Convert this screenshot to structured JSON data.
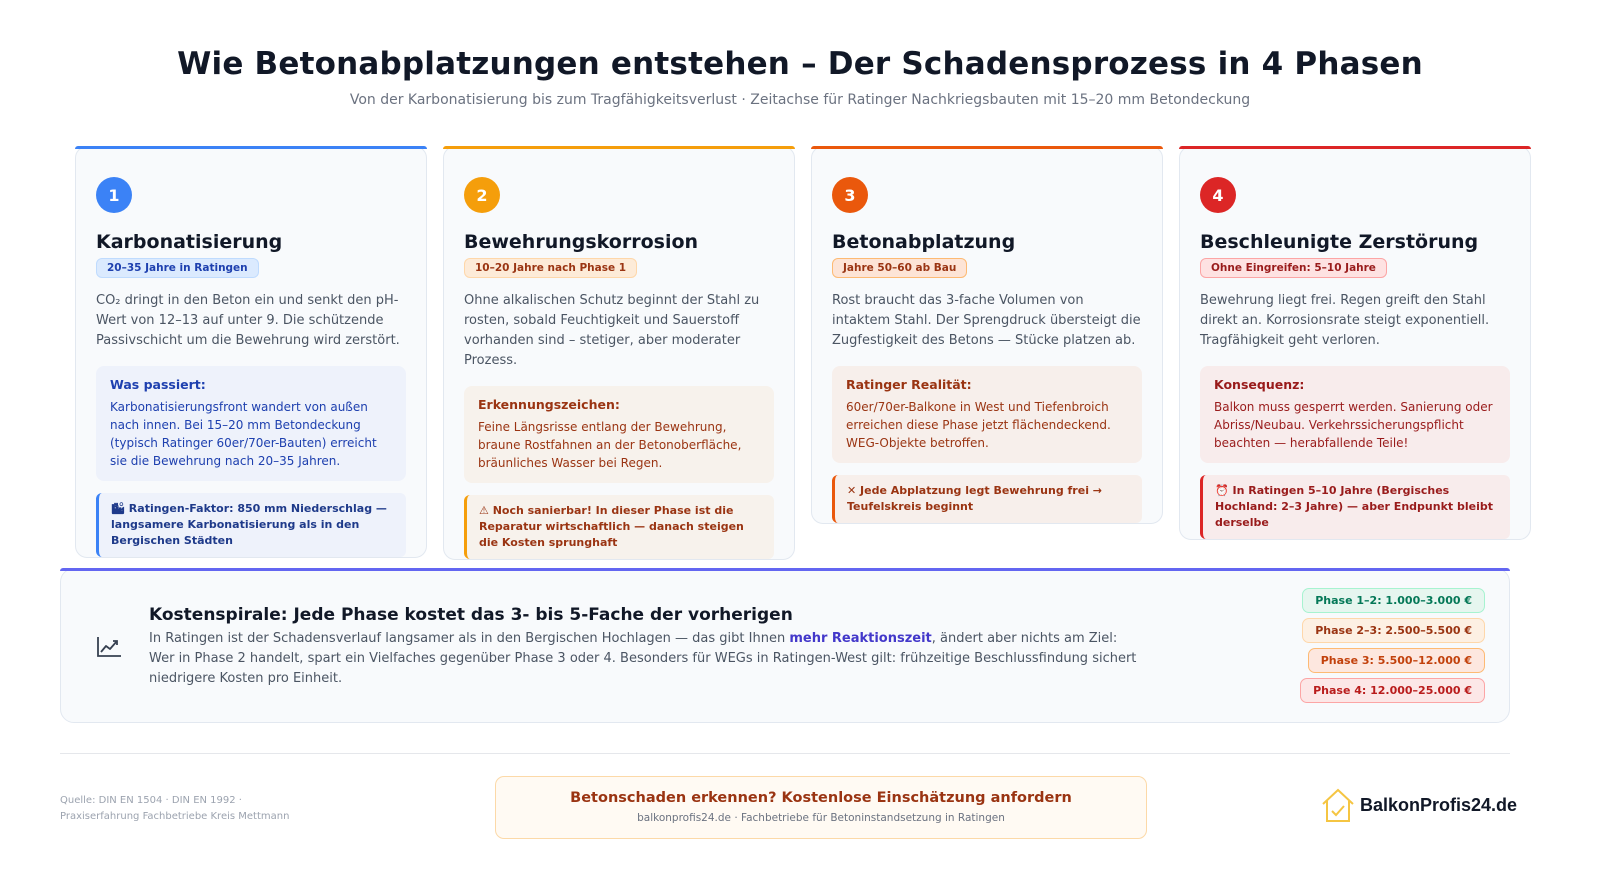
{
  "header": {
    "title": "Wie Betonabplatzungen entstehen – Der Schadensprozess in 4 Phasen",
    "subtitle": "Von der Karbonatisierung bis zum Tragfähigkeitsverlust · Zeitachse für Ratinger Nachkriegsbauten mit 15–20 mm Betondeckung"
  },
  "phases": [
    {
      "number": "1",
      "title": "Karbonatisierung",
      "badge": "20–35 Jahre in Ratingen",
      "description": "CO₂ dringt in den Beton ein und senkt den pH-Wert von 12–13 auf unter 9. Die schützende Passivschicht um die Bewehrung wird zerstört.",
      "box_title": "Was passiert:",
      "box_text": "Karbonatisierungsfront wandert von außen nach innen. Bei 15–20 mm Betondeckung (typisch Ratinger 60er/70er-Bauten) erreicht sie die Bewehrung nach 20–35 Jahren.",
      "note": "🏙 Ratingen-Faktor: 850 mm Niederschlag — langsamere Karbonatisierung als in den Bergischen Städten",
      "accent": "#3b82f6"
    },
    {
      "number": "2",
      "title": "Bewehrungskorrosion",
      "badge": "10–20 Jahre nach Phase 1",
      "description": "Ohne alkalischen Schutz beginnt der Stahl zu rosten, sobald Feuchtigkeit und Sauerstoff vorhanden sind – stetiger, aber moderater Prozess.",
      "box_title": "Erkennungszeichen:",
      "box_text": "Feine Längsrisse entlang der Bewehrung, braune Rostfahnen an der Betonoberfläche, bräunliches Wasser bei Regen.",
      "note": "⚠ Noch sanierbar! In dieser Phase ist die Reparatur wirtschaftlich — danach steigen die Kosten sprunghaft",
      "accent": "#f59e0b"
    },
    {
      "number": "3",
      "title": "Betonabplatzung",
      "badge": "Jahre 50–60 ab Bau",
      "description": "Rost braucht das 3-fache Volumen von intaktem Stahl. Der Sprengdruck übersteigt die Zugfestigkeit des Betons — Stücke platzen ab.",
      "box_title": "Ratinger Realität:",
      "box_text": "60er/70er-Balkone in West und Tiefenbroich erreichen diese Phase jetzt flächendeckend. WEG-Objekte betroffen.",
      "note": "✕ Jede Abplatzung legt Bewehrung frei → Teufelskreis beginnt",
      "accent": "#ea580c"
    },
    {
      "number": "4",
      "title": "Beschleunigte Zerstörung",
      "badge": "Ohne Eingreifen: 5–10 Jahre",
      "description": "Bewehrung liegt frei. Regen greift den Stahl direkt an. Korrosionsrate steigt exponentiell. Tragfähigkeit geht verloren.",
      "box_title": "Konsequenz:",
      "box_text": "Balkon muss gesperrt werden. Sanierung oder Abriss/Neubau. Verkehrssicherungspflicht beachten — herabfallende Teile!",
      "note": "⏰ In Ratingen 5–10 Jahre (Bergisches Hochland: 2–3 Jahre) — aber Endpunkt bleibt derselbe",
      "accent": "#dc2626"
    }
  ],
  "cost": {
    "icon": "chart-icon",
    "title": "Kostenspirale: Jede Phase kostet das 3- bis 5-Fache der vorherigen",
    "text_before": "In Ratingen ist der Schadensverlauf langsamer als in den Bergischen Hochlagen — das gibt Ihnen ",
    "text_highlight": "mehr Reaktionszeit",
    "text_after": ", ändert aber nichts am Ziel: Wer in Phase 2 handelt, spart ein Vielfaches gegenüber Phase 3 oder 4. Besonders für WEGs in Ratingen-West gilt: frühzeitige Beschlussfindung sichert niedrigere Kosten pro Einheit.",
    "pills": [
      "Phase 1–2: 1.000–3.000 €",
      "Phase 2–3: 2.500–5.500 €",
      "Phase 3: 5.500–12.000 €",
      "Phase 4: 12.000–25.000 €"
    ]
  },
  "footer": {
    "source_line1": "Quelle: DIN EN 1504 · DIN EN 1992 ·",
    "source_line2": "Praxiserfahrung Fachbetriebe Kreis Mettmann",
    "cta_title": "Betonschaden erkennen? Kostenlose Einschätzung anfordern",
    "cta_sub": "balkonprofis24.de · Fachbetriebe für Betoninstandsetzung in Ratingen",
    "logo_text": "BalkonProfis24.de",
    "logo_icon": "house-check-icon"
  }
}
